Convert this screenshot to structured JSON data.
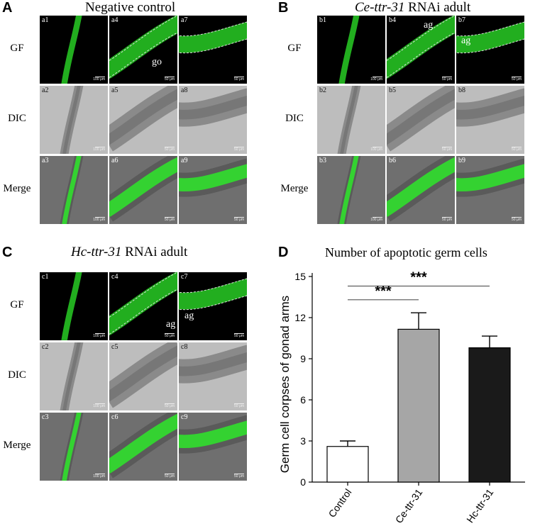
{
  "panels": {
    "A": {
      "letter": "A",
      "title": "Negative control",
      "rows": [
        "GF",
        "DIC",
        "Merge"
      ],
      "tiles": [
        "a1",
        "a2",
        "a3",
        "a4",
        "a5",
        "a6",
        "a7",
        "a8",
        "a9"
      ],
      "callouts": [
        "go"
      ]
    },
    "B": {
      "letter": "B",
      "title_italic": "Ce-ttr-31",
      "title_rest": " RNAi adult",
      "rows": [
        "GF",
        "DIC",
        "Merge"
      ],
      "tiles": [
        "b1",
        "b2",
        "b3",
        "b4",
        "b5",
        "b6",
        "b7",
        "b8",
        "b9"
      ],
      "callouts": [
        "ag",
        "ag"
      ]
    },
    "C": {
      "letter": "C",
      "title_italic": "Hc-ttr-31",
      "title_rest": " RNAi adult",
      "rows": [
        "GF",
        "DIC",
        "Merge"
      ],
      "tiles": [
        "c1",
        "c2",
        "c3",
        "c4",
        "c5",
        "c6",
        "c7",
        "c8",
        "c9"
      ],
      "callouts": [
        "ag",
        "ag"
      ]
    },
    "D": {
      "letter": "D"
    }
  },
  "scale_labels": {
    "col1": "100 μm",
    "other": "50 μm"
  },
  "colors": {
    "gfp": "#2ee82a",
    "bar_control": "#ffffff",
    "bar_ce": "#a6a6a6",
    "bar_hc": "#1a1a1a"
  },
  "chart_data": {
    "type": "bar",
    "title": "Number of apoptotic germ cells",
    "ylabel": "Germ cell corpses of gonad arms",
    "xlabel": "",
    "categories": [
      "Control",
      "Ce-ttr-31",
      "Hc-ttr-31"
    ],
    "values": [
      2.6,
      11.15,
      9.8
    ],
    "errors": [
      0.4,
      1.2,
      0.85
    ],
    "ylim": [
      0,
      15
    ],
    "yticks": [
      0,
      3,
      6,
      9,
      12,
      15
    ],
    "significance": [
      {
        "from": "Control",
        "to": "Ce-ttr-31",
        "label": "***"
      },
      {
        "from": "Control",
        "to": "Hc-ttr-31",
        "label": "***"
      }
    ],
    "grid": false,
    "legend": "none"
  }
}
